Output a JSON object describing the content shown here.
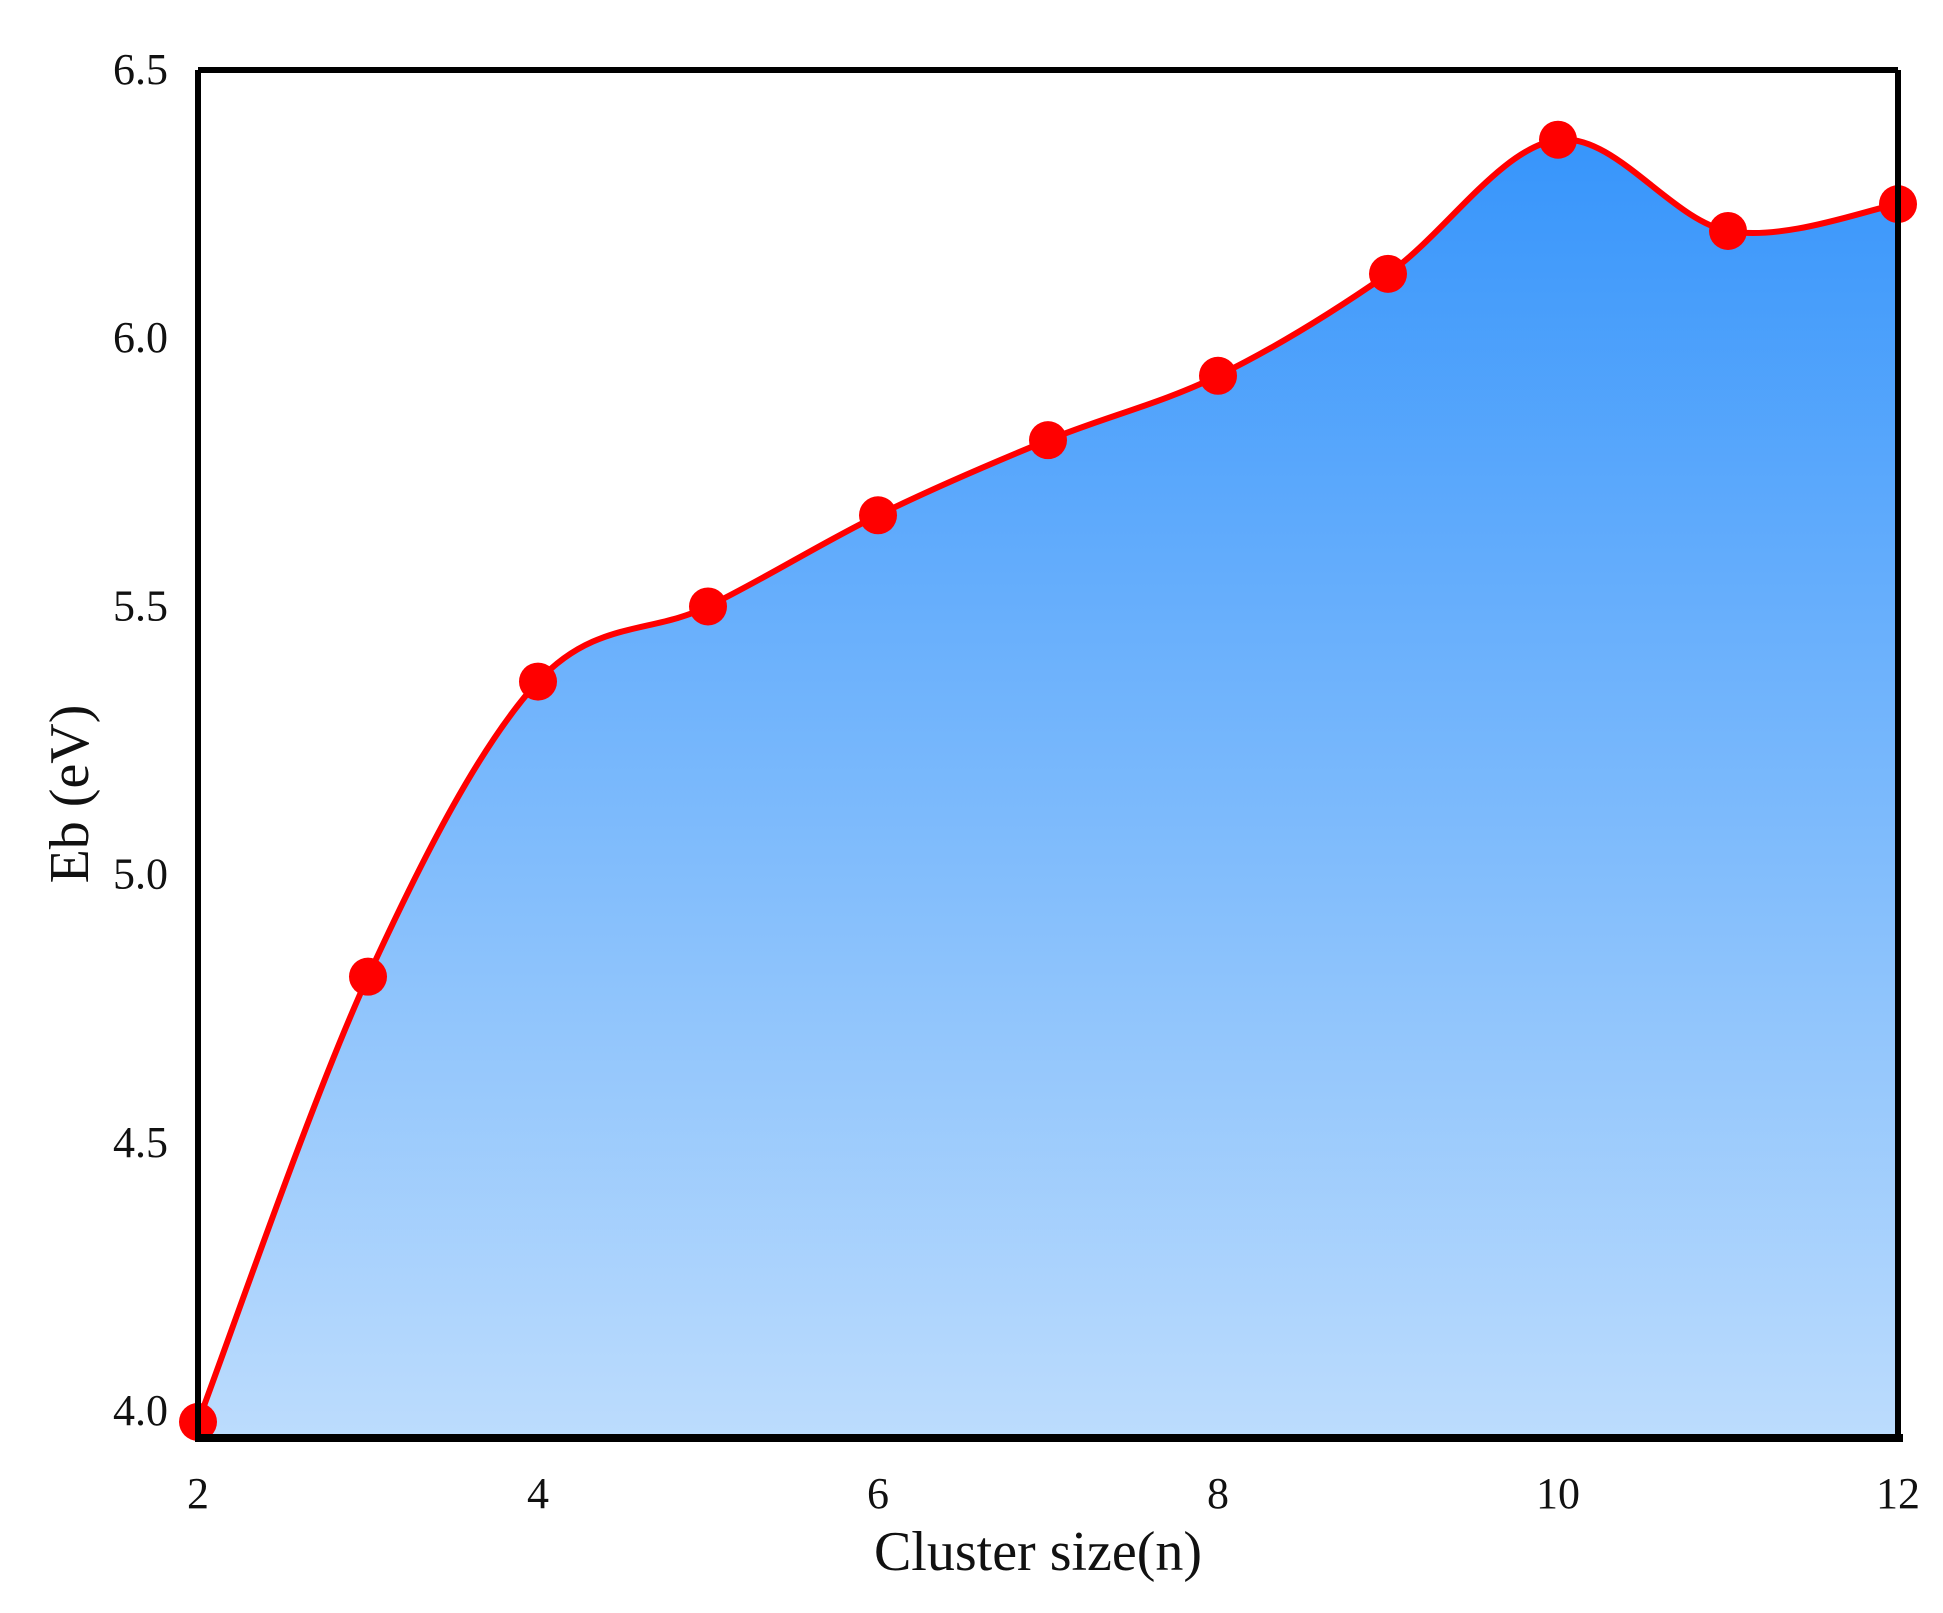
{
  "chart_data": {
    "type": "area",
    "xlabel": "Cluster size(n)",
    "ylabel": "Eb (eV)",
    "xlim": [
      2,
      12
    ],
    "ylim": [
      3.95,
      6.5
    ],
    "xticks": [
      "2",
      "4",
      "6",
      "8",
      "10",
      "12"
    ],
    "yticks": [
      "4.0",
      "4.5",
      "5.0",
      "5.5",
      "6.0",
      "6.5"
    ],
    "x": [
      2,
      3,
      4,
      5,
      6,
      7,
      8,
      9,
      10,
      11,
      12
    ],
    "values": [
      3.98,
      4.81,
      5.36,
      5.5,
      5.67,
      5.81,
      5.93,
      6.12,
      6.37,
      6.2,
      6.25
    ],
    "grid": false,
    "legend": "none",
    "colors": {
      "line": "#ff0000",
      "marker": "#ff0000",
      "fill_top": "#3795fb",
      "fill_bottom": "#bcdcfd",
      "axis": "#000000"
    }
  }
}
